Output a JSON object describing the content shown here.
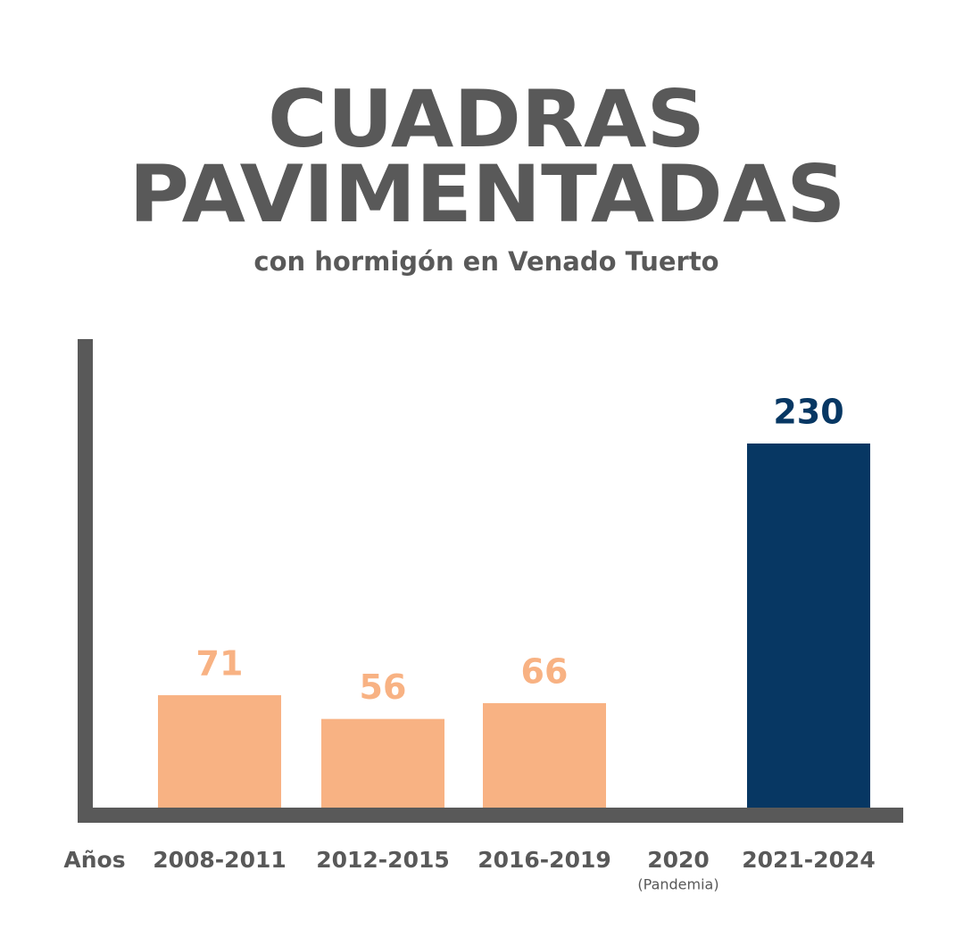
{
  "chart_data": {
    "type": "bar",
    "title": [
      "CUADRAS",
      "PAVIMENTADAS"
    ],
    "subtitle": "con hormigón en Venado Tuerto",
    "x_label": "Años",
    "categories": [
      "2008-2011",
      "2012-2015",
      "2016-2019",
      "2020",
      "2021-2024"
    ],
    "category_notes": [
      null,
      null,
      null,
      "(Pandemia)",
      null
    ],
    "values": [
      71,
      56,
      66,
      null,
      230
    ],
    "colors": [
      "#f8b283",
      "#f8b283",
      "#f8b283",
      null,
      "#073763"
    ]
  }
}
